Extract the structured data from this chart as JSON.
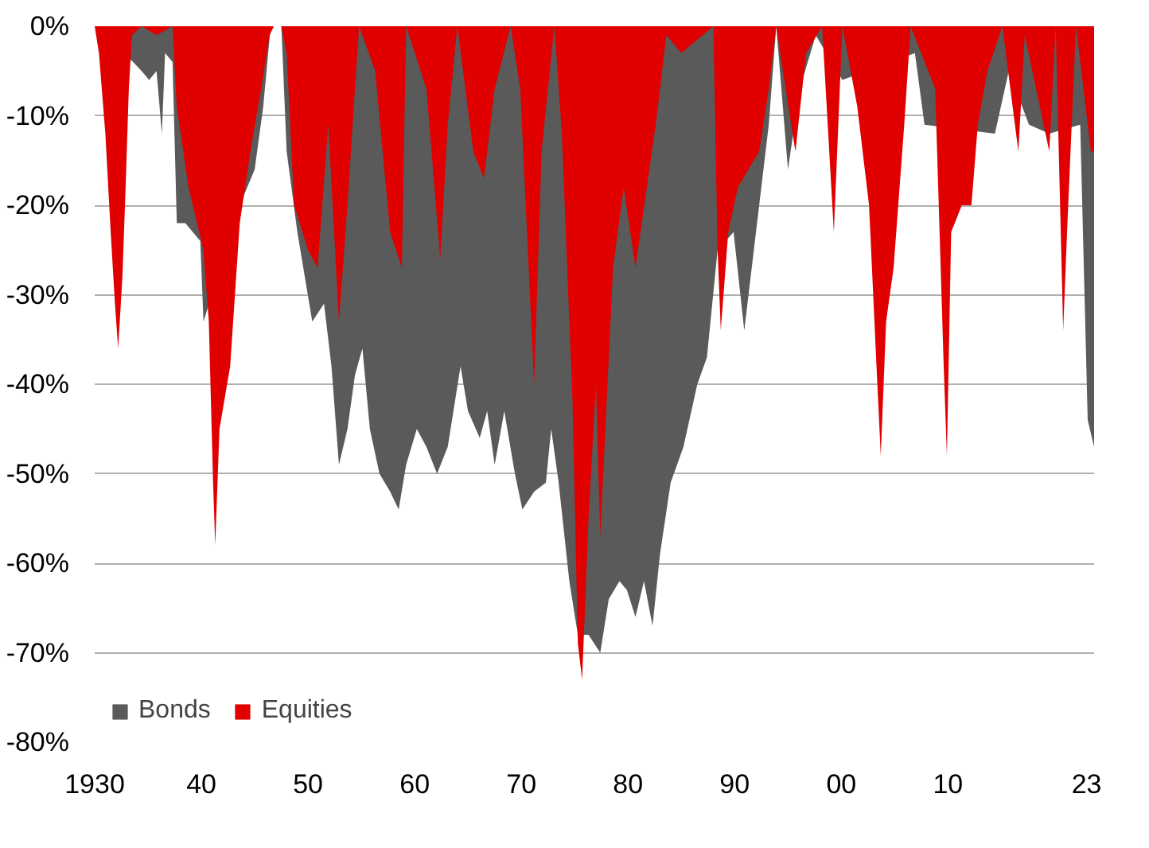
{
  "chart_data": {
    "type": "area",
    "xlim": [
      1930,
      2023.7
    ],
    "ylim": [
      -80,
      0
    ],
    "xticks": [
      {
        "value": 1930,
        "label": "1930"
      },
      {
        "value": 1940,
        "label": "40"
      },
      {
        "value": 1950,
        "label": "50"
      },
      {
        "value": 1960,
        "label": "60"
      },
      {
        "value": 1970,
        "label": "70"
      },
      {
        "value": 1980,
        "label": "80"
      },
      {
        "value": 1990,
        "label": "90"
      },
      {
        "value": 2000,
        "label": "00"
      },
      {
        "value": 2010,
        "label": "10"
      },
      {
        "value": 2023,
        "label": "23"
      }
    ],
    "yticks": [
      {
        "value": 0,
        "label": "0%"
      },
      {
        "value": -10,
        "label": "-10%"
      },
      {
        "value": -20,
        "label": "-20%"
      },
      {
        "value": -30,
        "label": "-30%"
      },
      {
        "value": -40,
        "label": "-40%"
      },
      {
        "value": -50,
        "label": "-50%"
      },
      {
        "value": -60,
        "label": "-60%"
      },
      {
        "value": -70,
        "label": "-70%"
      },
      {
        "value": -80,
        "label": "-80%"
      }
    ],
    "grid": "y",
    "legend": "bottom left",
    "series": [
      {
        "name": "Bonds",
        "color": "#5a5a5a",
        "x": [
          1930.0,
          1930.7,
          1932.2,
          1932.9,
          1933.6,
          1934.4,
          1935.1,
          1935.8,
          1936.3,
          1936.6,
          1937.3,
          1937.7,
          1938.5,
          1939.9,
          1940.2,
          1941.2,
          1942.1,
          1943.6,
          1945.0,
          1945.8,
          1946.5,
          1947.5,
          1948.0,
          1949.0,
          1950.4,
          1951.5,
          1952.2,
          1952.9,
          1953.7,
          1954.4,
          1955.1,
          1955.8,
          1956.7,
          1957.7,
          1958.5,
          1959.2,
          1960.2,
          1961.1,
          1962.1,
          1963.1,
          1964.3,
          1965.0,
          1966.1,
          1966.8,
          1967.5,
          1968.4,
          1969.4,
          1970.1,
          1971.2,
          1972.3,
          1972.8,
          1973.5,
          1974.5,
          1975.3,
          1975.5,
          1976.3,
          1977.4,
          1978.2,
          1979.2,
          1979.9,
          1980.7,
          1981.5,
          1982.3,
          1983.0,
          1984.0,
          1985.2,
          1986.5,
          1987.4,
          1988.4,
          1989.9,
          1990.9,
          1992.0,
          1993.2,
          1993.9,
          1995.0,
          1996.1,
          1997.6,
          1999.1,
          2000.1,
          2001.1,
          2004.0,
          2006.9,
          2007.8,
          2008.8,
          2010.7,
          2012.8,
          2014.4,
          2015.7,
          2017.6,
          2019.5,
          2020.5,
          2022.4,
          2023.1,
          2023.7
        ],
        "values": [
          0,
          null,
          null,
          null,
          -4,
          -5,
          -6,
          -5,
          -12,
          -3,
          -4,
          -22,
          -22,
          -24,
          -33,
          null,
          null,
          -20,
          -16,
          -9,
          0,
          0,
          -14,
          -23,
          -33,
          -31,
          -38,
          -49,
          -45,
          -39,
          -36,
          -45,
          -50,
          -52,
          -54,
          -49,
          -45,
          -47,
          -50,
          -47,
          -38,
          -43,
          -46,
          -43,
          -49,
          -43,
          -50,
          -54,
          -52,
          -51,
          -45,
          -51,
          -62,
          -68,
          -68,
          -68,
          -70,
          -64,
          -62,
          -63,
          -66,
          -62,
          -67,
          -59,
          -51,
          -47,
          -40,
          -37,
          -25,
          -23,
          -34,
          -23,
          -11,
          0,
          -16,
          -7,
          -1,
          null,
          -6,
          null,
          null,
          -3,
          -11,
          null,
          null,
          null,
          -12,
          -5,
          -11,
          -12,
          null,
          -11,
          -44,
          -47
        ]
      },
      {
        "name": "Equities",
        "color": "#e00000",
        "x": [
          1930.0,
          1930.4,
          1931.0,
          1931.5,
          1931.9,
          1932.2,
          1932.6,
          1932.9,
          1933.2,
          1933.5,
          1934.4,
          1935.8,
          1937.3,
          1937.7,
          1938.8,
          1940.2,
          1940.7,
          1941.1,
          1941.3,
          1941.7,
          1942.7,
          1943.6,
          1944.6,
          1945.6,
          1946.4,
          1946.8,
          1947.5,
          1948.0,
          1948.7,
          1950.0,
          1950.9,
          1951.9,
          1952.9,
          1953.7,
          1954.4,
          1954.8,
          1956.3,
          1957.7,
          1958.8,
          1959.2,
          1961.1,
          1962.4,
          1963.1,
          1964.0,
          1965.5,
          1966.5,
          1967.5,
          1969.0,
          1969.9,
          1971.2,
          1971.9,
          1973.1,
          1973.8,
          1974.8,
          1975.3,
          1975.7,
          1976.3,
          1977.0,
          1977.4,
          1978.6,
          1979.6,
          1980.7,
          1982.6,
          1983.6,
          1985.0,
          1988.0,
          1988.4,
          1988.7,
          1989.4,
          1990.3,
          1992.3,
          1993.2,
          1993.9,
          1995.3,
          1995.7,
          1996.7,
          1998.2,
          1999.3,
          2000.1,
          2001.5,
          2002.6,
          2003.3,
          2003.7,
          2004.2,
          2004.9,
          2005.9,
          2006.5,
          2008.8,
          2009.6,
          2009.9,
          2010.3,
          2011.3,
          2012.2,
          2012.8,
          2013.7,
          2015.1,
          2016.6,
          2017.2,
          2019.5,
          2020.1,
          2020.8,
          2021.2,
          2022.0,
          2023.4,
          2023.7
        ],
        "values": [
          0,
          -3,
          -12,
          -23,
          -31,
          -36,
          -28,
          -18,
          -7,
          -1,
          0,
          -1,
          0,
          -9,
          -18,
          -25,
          -33,
          -51,
          -58,
          -45,
          -38,
          -22,
          -14,
          -7,
          -1,
          0,
          0,
          -3,
          -20,
          -25,
          -27,
          -11,
          -33,
          -20,
          -7,
          0,
          -5,
          -23,
          -27,
          0,
          -7,
          -26,
          -11,
          0,
          -14,
          -17,
          -7,
          0,
          -7,
          -40,
          -14,
          0,
          -12,
          -42,
          -69,
          -73,
          -55,
          -40,
          -57,
          -27,
          -18,
          -27,
          -11,
          -1,
          -3,
          0,
          -25,
          -34,
          -23,
          -18,
          -14,
          -7,
          0,
          -11,
          -14,
          -3,
          0,
          -23,
          0,
          -9,
          -20,
          -38,
          -48,
          -33,
          -27,
          -11,
          0,
          -7,
          -38,
          -48,
          -23,
          -20,
          -20,
          -11,
          -5,
          0,
          -14,
          -1,
          -14,
          0,
          -34,
          -22,
          0,
          -14,
          -14
        ]
      }
    ]
  }
}
